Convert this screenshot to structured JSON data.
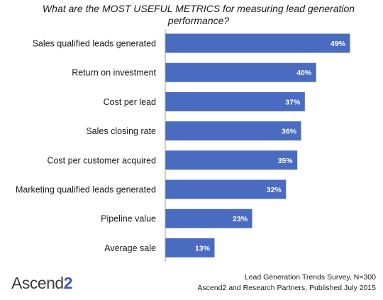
{
  "chart_data": {
    "type": "bar",
    "orientation": "horizontal",
    "title": "What are the MOST USEFUL METRICS for measuring lead generation performance?",
    "categories": [
      "Sales qualified leads generated",
      "Return on investment",
      "Cost per lead",
      "Sales closing rate",
      "Cost per customer acquired",
      "Marketing qualified leads generated",
      "Pipeline value",
      "Average sale"
    ],
    "values": [
      49,
      40,
      37,
      36,
      35,
      32,
      23,
      13
    ],
    "data_labels": [
      "49%",
      "40%",
      "37%",
      "36%",
      "35%",
      "32%",
      "23%",
      "13%"
    ],
    "unit": "%",
    "xlim": [
      0,
      49
    ],
    "grid": false,
    "bar_color": "#4a6cc0"
  },
  "footer": {
    "line1": "Lead Generation Trends Survey, N=300",
    "line2": "Ascend2 and Research Partners, Published July 2015"
  },
  "logo": {
    "text": "Ascend",
    "number": "2"
  }
}
